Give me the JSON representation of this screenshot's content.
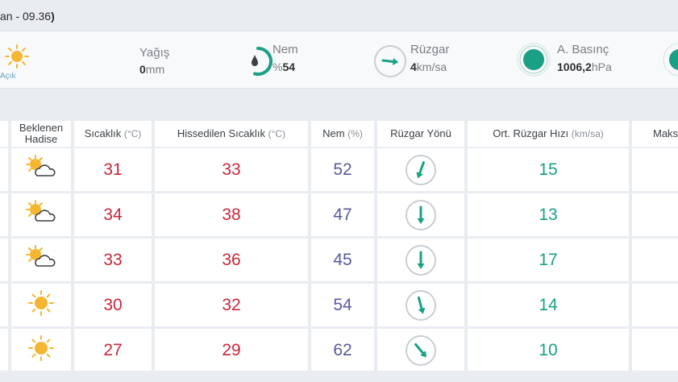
{
  "header": {
    "text_prefix": "an - 09.36",
    "text_suffix": ")"
  },
  "current": {
    "condition_label": "Açık",
    "condition_icon": "sun-icon",
    "precip": {
      "title": "Yağış",
      "value": "0",
      "unit": "mm"
    },
    "humidity": {
      "title": "Nem",
      "prefix": "%",
      "value": "54",
      "percent": 54
    },
    "wind": {
      "title": "Rüzgar",
      "value": "4",
      "unit": "km/sa"
    },
    "pressure": {
      "title": "A. Basınç",
      "value": "1006,2",
      "unit": "hPa"
    }
  },
  "colors": {
    "accent": "#1aa085",
    "temp": "#c8283a",
    "humidity": "#5a5aa0",
    "sun": "#f5b731"
  },
  "table": {
    "headers": {
      "condition": "Beklenen Hadise",
      "condition_line1": "Beklenen",
      "condition_line2": "Hadise",
      "temp": "Sıcaklık",
      "temp_unit": "(°C)",
      "feels": "Hissedilen Sıcaklık",
      "feels_unit": "(°C)",
      "humidity": "Nem",
      "humidity_unit": "(%)",
      "wind_dir": "Rüzgar Yönü",
      "wind_speed": "Ort. Rüzgar Hızı",
      "wind_speed_unit": "(km/sa)",
      "max_partial": "Maks"
    },
    "rows": [
      {
        "icon": "partly-cloudy-icon",
        "temp": "31",
        "feels": "33",
        "humidity": "52",
        "wind_dir_deg": 200,
        "wind_speed": "15"
      },
      {
        "icon": "partly-cloudy-icon",
        "temp": "34",
        "feels": "38",
        "humidity": "47",
        "wind_dir_deg": 180,
        "wind_speed": "13"
      },
      {
        "icon": "partly-cloudy-icon",
        "temp": "33",
        "feels": "36",
        "humidity": "45",
        "wind_dir_deg": 180,
        "wind_speed": "17"
      },
      {
        "icon": "sun-icon",
        "temp": "30",
        "feels": "32",
        "humidity": "54",
        "wind_dir_deg": 165,
        "wind_speed": "14"
      },
      {
        "icon": "sun-icon",
        "temp": "27",
        "feels": "29",
        "humidity": "62",
        "wind_dir_deg": 140,
        "wind_speed": "10"
      }
    ]
  }
}
